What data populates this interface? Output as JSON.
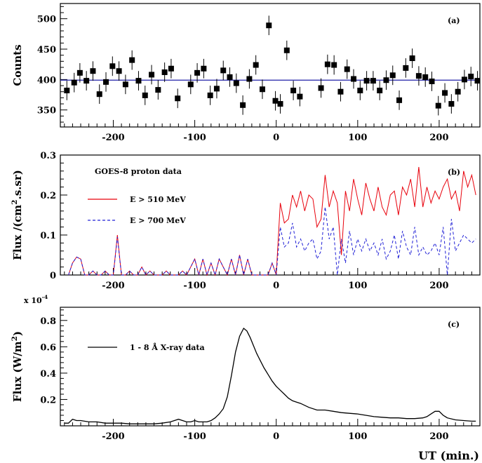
{
  "figure": {
    "xlabel": "UT (min.)"
  },
  "chart_data": [
    {
      "type": "scatter",
      "panel_label": "(a)",
      "ylabel": "Counts",
      "xlim": [
        -265,
        250
      ],
      "ylim": [
        322,
        525
      ],
      "xticks": [
        -200,
        -100,
        0,
        100,
        200
      ],
      "yticks": [
        350,
        400,
        450,
        500
      ],
      "reference_line": {
        "y": 399,
        "color": "#1f1fa8"
      },
      "series": [
        {
          "x": [
            -257,
            -248,
            -241,
            -233,
            -225,
            -217,
            -209,
            -201,
            -193,
            -185,
            -177,
            -169,
            -161,
            -153,
            -145,
            -137,
            -129,
            -121,
            -105,
            -97,
            -89,
            -81,
            -73,
            -65,
            -57,
            -49,
            -41,
            -33,
            -25,
            -17,
            -9,
            -1,
            5,
            13,
            21,
            29,
            55,
            63,
            71,
            79,
            87,
            95,
            103,
            111,
            119,
            127,
            135,
            143,
            151,
            159,
            167,
            175,
            183,
            191,
            199,
            207,
            215,
            223,
            231,
            239,
            247
          ],
          "y": [
            382,
            395,
            411,
            398,
            414,
            376,
            396,
            422,
            414,
            392,
            432,
            398,
            374,
            408,
            383,
            412,
            418,
            369,
            392,
            411,
            418,
            374,
            385,
            415,
            404,
            394,
            358,
            401,
            424,
            384,
            489,
            365,
            360,
            448,
            382,
            372,
            386,
            425,
            424,
            380,
            417,
            401,
            382,
            398,
            398,
            382,
            399,
            407,
            366,
            419,
            435,
            406,
            404,
            397,
            357,
            378,
            360,
            380,
            400,
            405,
            398
          ],
          "yerr": 16
        }
      ]
    },
    {
      "type": "line",
      "panel_label": "(b)",
      "ylabel": "Flux /(cm^2.s.sr)",
      "legend_title": "GOES-8 proton data",
      "xlim": [
        -265,
        250
      ],
      "ylim": [
        0,
        0.3
      ],
      "xticks": [
        -200,
        -100,
        0,
        100,
        200
      ],
      "yticks": [
        0,
        0.1,
        0.2,
        0.3
      ],
      "x": [
        -255,
        -250,
        -245,
        -240,
        -235,
        -230,
        -225,
        -220,
        -215,
        -210,
        -205,
        -200,
        -195,
        -190,
        -185,
        -180,
        -175,
        -170,
        -165,
        -160,
        -155,
        -150,
        -145,
        -140,
        -135,
        -130,
        -125,
        -120,
        -115,
        -110,
        -105,
        -100,
        -95,
        -90,
        -85,
        -80,
        -75,
        -70,
        -65,
        -60,
        -55,
        -50,
        -45,
        -40,
        -35,
        -30,
        -25,
        -20,
        -15,
        -10,
        -5,
        0,
        5,
        10,
        15,
        20,
        25,
        30,
        35,
        40,
        45,
        50,
        55,
        60,
        65,
        70,
        75,
        80,
        85,
        90,
        95,
        100,
        105,
        110,
        115,
        120,
        125,
        130,
        135,
        140,
        145,
        150,
        155,
        160,
        165,
        170,
        175,
        180,
        185,
        190,
        195,
        200,
        205,
        210,
        215,
        220,
        225,
        230,
        235,
        240,
        245
      ],
      "series": [
        {
          "name": "E > 510 MeV",
          "color": "#e8000b",
          "style": "solid",
          "values": [
            0.0,
            0.03,
            0.045,
            0.04,
            0.0,
            0.0,
            0.01,
            0.0,
            0.0,
            0.01,
            0.0,
            0.0,
            0.1,
            0.0,
            0.0,
            0.01,
            0.0,
            0.0,
            0.02,
            0.0,
            0.01,
            0.0,
            0.0,
            0.0,
            0.01,
            0.0,
            0.0,
            0.0,
            0.01,
            0.0,
            0.02,
            0.04,
            0.0,
            0.04,
            0.0,
            0.03,
            0.0,
            0.04,
            0.02,
            0.0,
            0.04,
            0.0,
            0.05,
            0.0,
            0.04,
            0.0,
            0.0,
            0.0,
            0.0,
            0.0,
            0.03,
            0.0,
            0.18,
            0.13,
            0.14,
            0.2,
            0.17,
            0.21,
            0.16,
            0.2,
            0.19,
            0.12,
            0.14,
            0.25,
            0.17,
            0.21,
            0.18,
            0.05,
            0.21,
            0.16,
            0.24,
            0.19,
            0.15,
            0.23,
            0.19,
            0.16,
            0.22,
            0.17,
            0.15,
            0.2,
            0.21,
            0.15,
            0.22,
            0.2,
            0.24,
            0.17,
            0.27,
            0.17,
            0.22,
            0.18,
            0.21,
            0.19,
            0.22,
            0.24,
            0.19,
            0.21,
            0.16,
            0.26,
            0.22,
            0.25,
            0.2
          ]
        },
        {
          "name": "E > 700 MeV",
          "color": "#1f1fd6",
          "style": "dashed",
          "values": [
            0.0,
            0.03,
            0.045,
            0.04,
            0.0,
            0.0,
            0.01,
            0.0,
            0.0,
            0.01,
            0.0,
            0.0,
            0.095,
            0.0,
            0.0,
            0.01,
            0.0,
            0.0,
            0.02,
            0.0,
            0.01,
            0.0,
            0.0,
            0.0,
            0.01,
            0.0,
            0.0,
            0.0,
            0.01,
            0.0,
            0.02,
            0.04,
            0.0,
            0.04,
            0.0,
            0.03,
            0.0,
            0.04,
            0.02,
            0.0,
            0.04,
            0.0,
            0.05,
            0.0,
            0.04,
            0.0,
            0.0,
            0.0,
            0.0,
            0.0,
            0.03,
            0.0,
            0.12,
            0.07,
            0.08,
            0.13,
            0.07,
            0.09,
            0.06,
            0.08,
            0.09,
            0.04,
            0.06,
            0.17,
            0.09,
            0.12,
            0.0,
            0.09,
            0.03,
            0.11,
            0.05,
            0.09,
            0.06,
            0.09,
            0.06,
            0.08,
            0.05,
            0.09,
            0.04,
            0.06,
            0.1,
            0.04,
            0.11,
            0.07,
            0.05,
            0.12,
            0.05,
            0.07,
            0.05,
            0.06,
            0.08,
            0.05,
            0.12,
            0.0,
            0.14,
            0.06,
            0.08,
            0.1,
            0.09,
            0.08,
            0.09
          ]
        }
      ]
    },
    {
      "type": "line",
      "panel_label": "(c)",
      "ylabel": "Flux (W/m^2)",
      "multiplier": "x 10^-4",
      "xlim": [
        -265,
        250
      ],
      "ylim": [
        0,
        0.9
      ],
      "xticks": [
        -200,
        -100,
        0,
        100,
        200
      ],
      "yticks": [
        0.2,
        0.4,
        0.6,
        0.8
      ],
      "series": [
        {
          "name": "1 - 8 Å X-ray data",
          "color": "#000000",
          "x": [
            -260,
            -255,
            -250,
            -245,
            -240,
            -230,
            -220,
            -210,
            -200,
            -190,
            -180,
            -170,
            -160,
            -150,
            -140,
            -130,
            -125,
            -120,
            -115,
            -110,
            -105,
            -100,
            -95,
            -90,
            -85,
            -80,
            -75,
            -70,
            -65,
            -60,
            -55,
            -50,
            -45,
            -40,
            -36,
            -32,
            -28,
            -24,
            -20,
            -15,
            -10,
            -5,
            0,
            5,
            10,
            15,
            20,
            25,
            30,
            40,
            50,
            60,
            70,
            80,
            90,
            100,
            110,
            120,
            130,
            140,
            150,
            160,
            170,
            180,
            185,
            190,
            195,
            200,
            205,
            210,
            220,
            230,
            240,
            245
          ],
          "y": [
            0.02,
            0.02,
            0.05,
            0.04,
            0.04,
            0.03,
            0.03,
            0.02,
            0.02,
            0.02,
            0.015,
            0.015,
            0.015,
            0.015,
            0.02,
            0.03,
            0.04,
            0.05,
            0.04,
            0.03,
            0.03,
            0.04,
            0.03,
            0.03,
            0.03,
            0.04,
            0.06,
            0.09,
            0.13,
            0.22,
            0.38,
            0.56,
            0.68,
            0.74,
            0.72,
            0.67,
            0.61,
            0.55,
            0.5,
            0.44,
            0.39,
            0.34,
            0.3,
            0.27,
            0.24,
            0.21,
            0.19,
            0.18,
            0.17,
            0.14,
            0.12,
            0.12,
            0.11,
            0.1,
            0.095,
            0.09,
            0.08,
            0.07,
            0.065,
            0.06,
            0.06,
            0.055,
            0.055,
            0.06,
            0.07,
            0.09,
            0.11,
            0.11,
            0.08,
            0.06,
            0.045,
            0.04,
            0.035,
            0.035
          ]
        }
      ]
    }
  ]
}
